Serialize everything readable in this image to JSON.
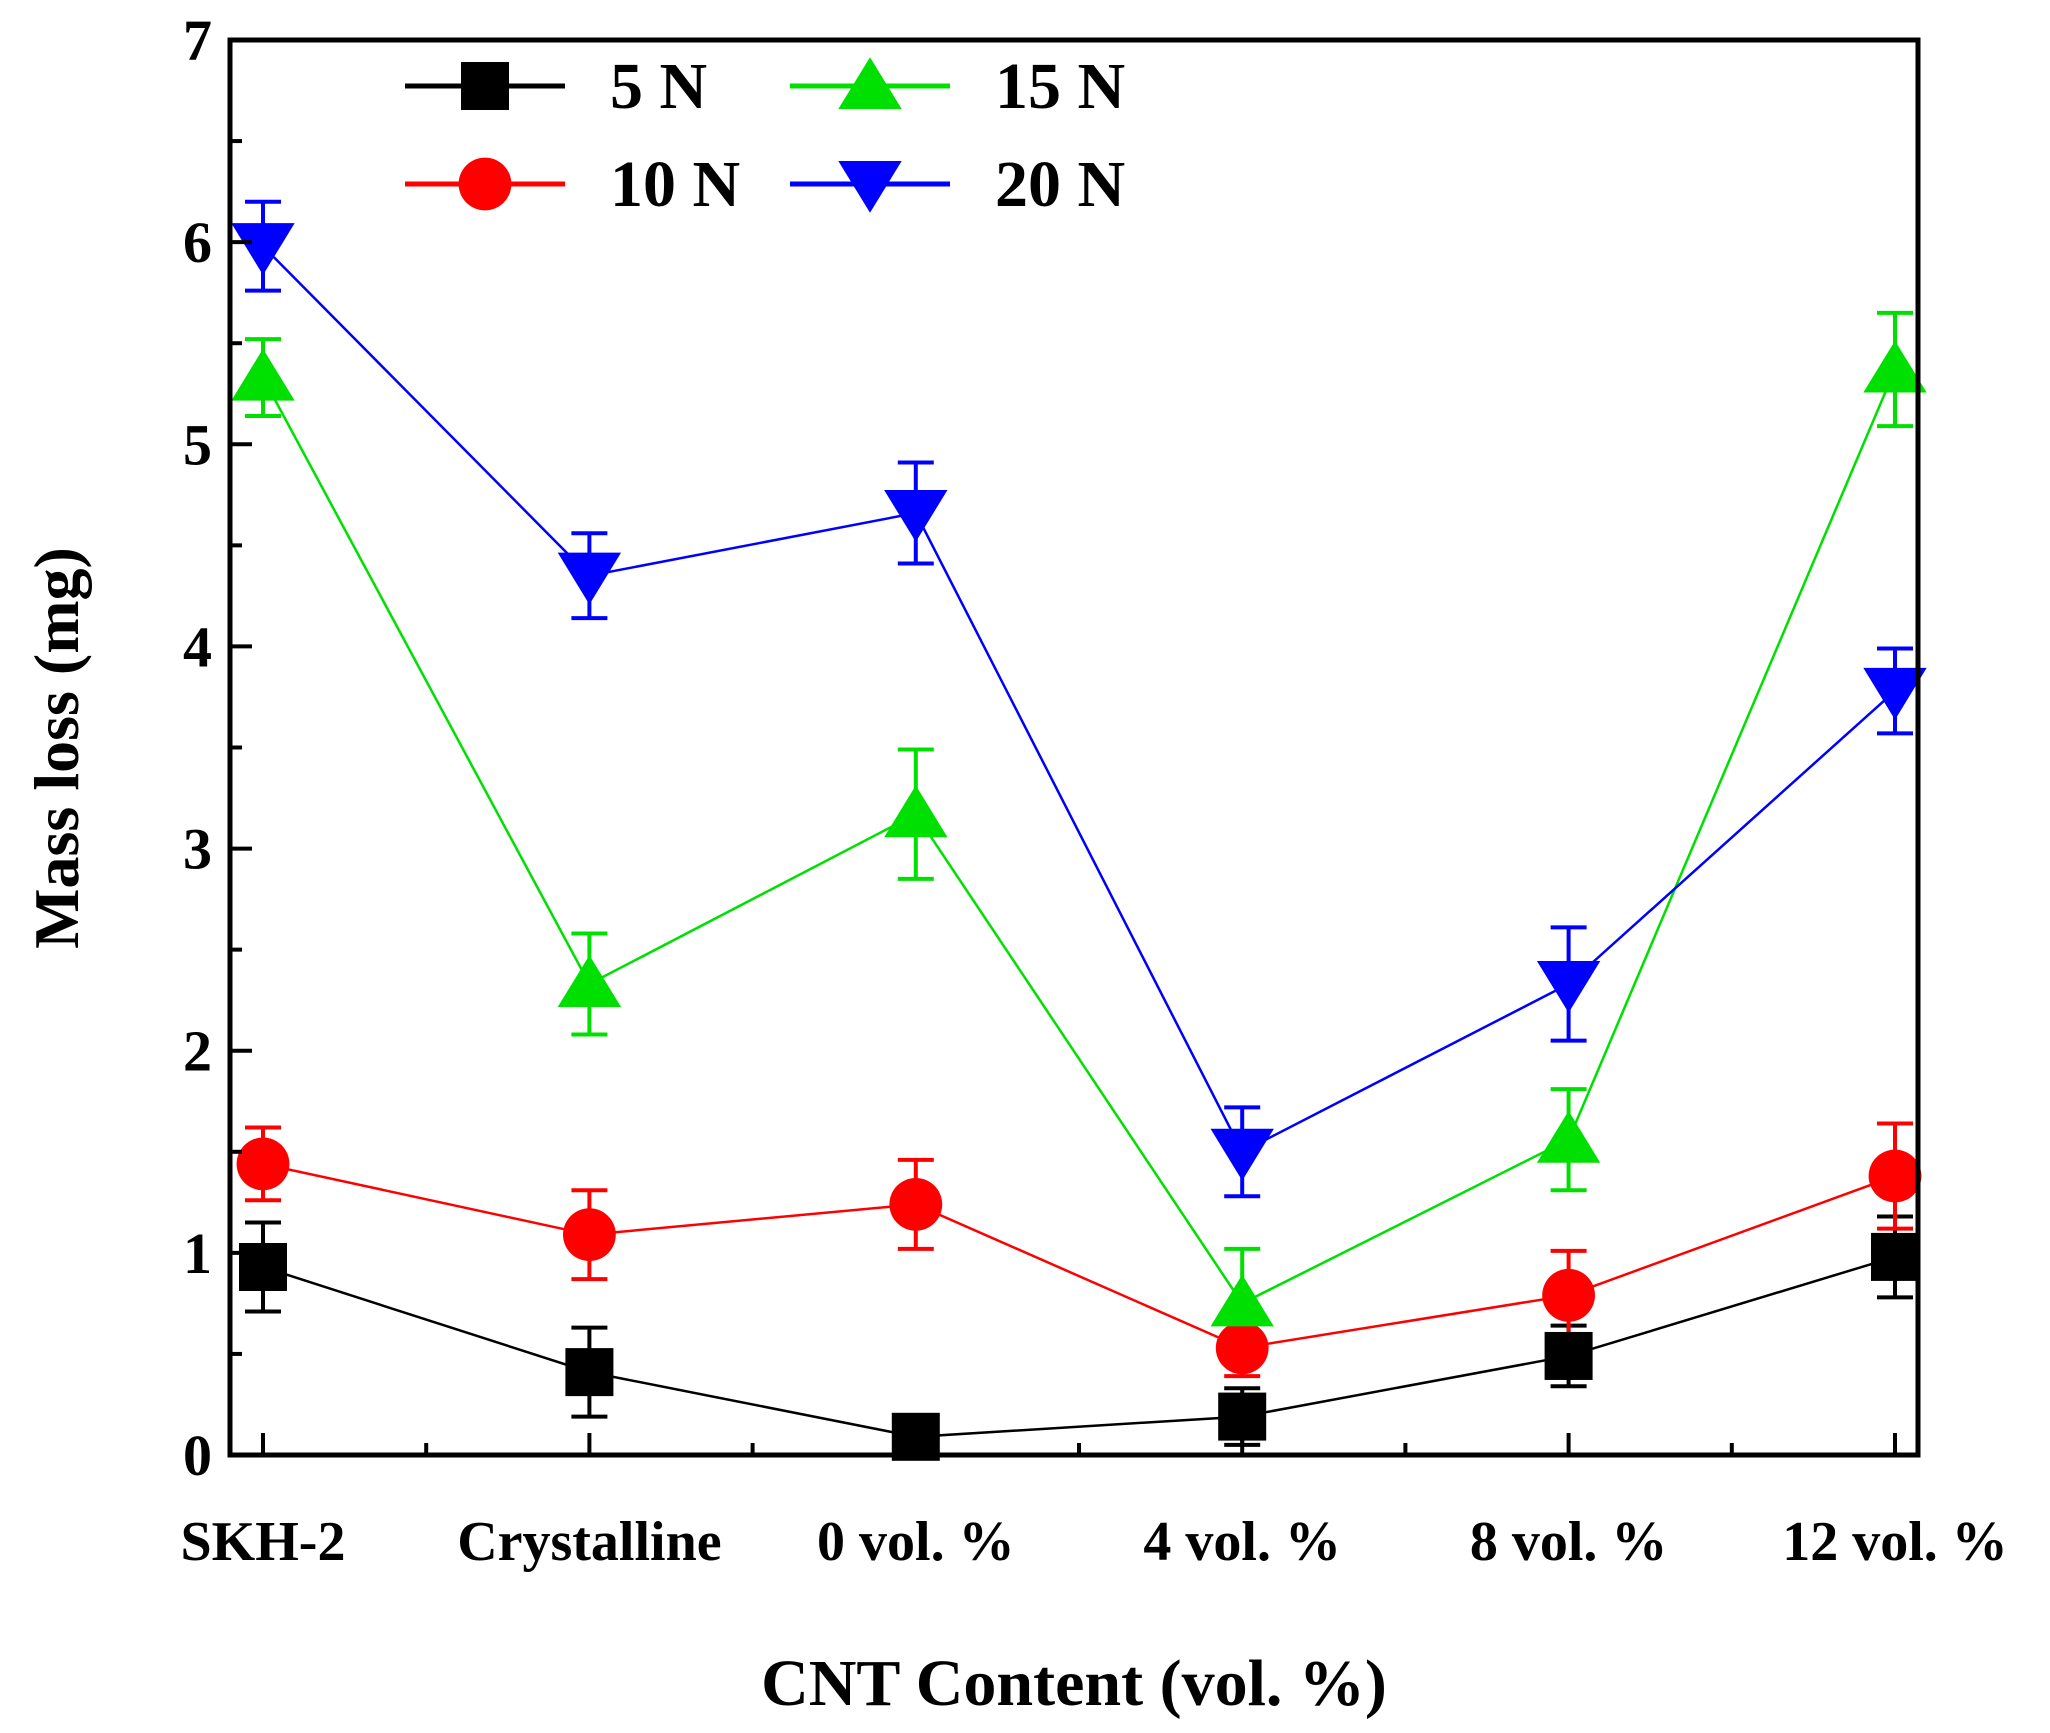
{
  "chart_data": {
    "type": "line",
    "title": "",
    "xlabel": "CNT Content (vol. %)",
    "ylabel": "Mass loss (mg)",
    "categories": [
      "SKH-2",
      "Crystalline",
      "0 vol. %",
      "4 vol. %",
      "8 vol. %",
      "12 vol. %"
    ],
    "ylim": [
      0,
      7
    ],
    "yticks": [
      "0",
      "1",
      "2",
      "3",
      "4",
      "5",
      "6",
      "7"
    ],
    "grid": false,
    "legend_position": "top-left",
    "series": [
      {
        "name": "5 N",
        "color": "#000000",
        "marker": "square",
        "values": [
          0.93,
          0.41,
          0.09,
          0.19,
          0.49,
          0.98
        ],
        "errors": [
          0.22,
          0.22,
          0.1,
          0.14,
          0.15,
          0.2
        ]
      },
      {
        "name": "10 N",
        "color": "#ff0000",
        "marker": "circle",
        "values": [
          1.44,
          1.09,
          1.24,
          0.53,
          0.79,
          1.38
        ],
        "errors": [
          0.18,
          0.22,
          0.22,
          0.14,
          0.22,
          0.26
        ]
      },
      {
        "name": "15 N",
        "color": "#00e000",
        "marker": "triangle-up",
        "values": [
          5.33,
          2.33,
          3.17,
          0.75,
          1.56,
          5.37
        ],
        "errors": [
          0.19,
          0.25,
          0.32,
          0.27,
          0.25,
          0.28
        ]
      },
      {
        "name": "20 N",
        "color": "#0000ff",
        "marker": "triangle-down",
        "values": [
          5.98,
          4.35,
          4.66,
          1.5,
          2.33,
          3.78
        ],
        "errors": [
          0.22,
          0.21,
          0.25,
          0.22,
          0.28,
          0.21
        ]
      }
    ]
  }
}
